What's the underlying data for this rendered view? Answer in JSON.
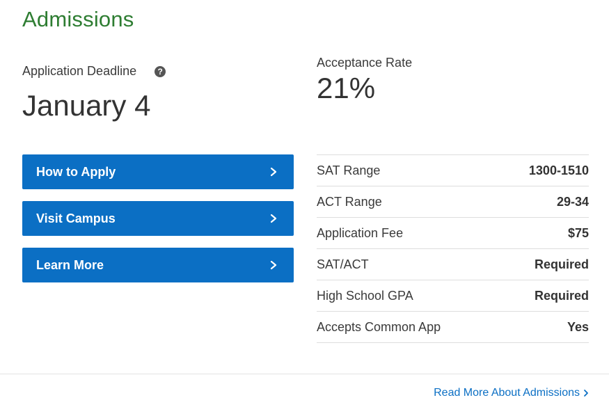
{
  "section": {
    "title": "Admissions"
  },
  "deadline": {
    "label": "Application Deadline",
    "help_icon": "question-circle-icon",
    "help_glyph": "?",
    "value": "January 4"
  },
  "acceptance": {
    "label": "Acceptance Rate",
    "value": "21%"
  },
  "buttons": [
    {
      "label": "How to Apply",
      "icon": "chevron-right-icon"
    },
    {
      "label": "Visit Campus",
      "icon": "chevron-right-icon"
    },
    {
      "label": "Learn More",
      "icon": "chevron-right-icon"
    }
  ],
  "stats": [
    {
      "label": "SAT Range",
      "value": "1300-1510"
    },
    {
      "label": "ACT Range",
      "value": "29-34"
    },
    {
      "label": "Application Fee",
      "value": "$75"
    },
    {
      "label": "SAT/ACT",
      "value": "Required"
    },
    {
      "label": "High School GPA",
      "value": "Required"
    },
    {
      "label": "Accepts Common App",
      "value": "Yes"
    }
  ],
  "footer": {
    "read_more_label": "Read More About Admissions",
    "read_more_icon": "chevron-right-icon"
  },
  "colors": {
    "title_green": "#2e7d32",
    "button_blue": "#0b6fc4",
    "link_blue": "#0b6fc4"
  }
}
